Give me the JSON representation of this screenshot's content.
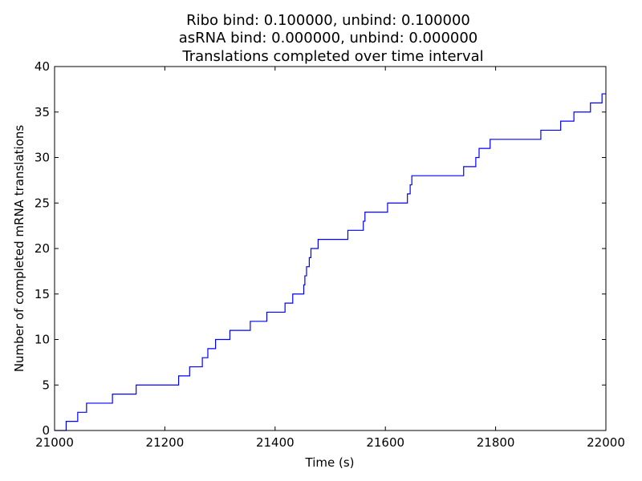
{
  "chart_data": {
    "type": "line",
    "step": true,
    "title_lines": [
      "Ribo bind: 0.100000, unbind: 0.100000",
      "asRNA bind: 0.000000, unbind: 0.000000",
      "Translations completed over time interval"
    ],
    "xlabel": "Time (s)",
    "ylabel": "Number of completed mRNA translations",
    "xlim": [
      21000,
      22000
    ],
    "ylim": [
      0,
      40
    ],
    "xticks": [
      21000,
      21200,
      21400,
      21600,
      21800,
      22000
    ],
    "yticks": [
      0,
      5,
      10,
      15,
      20,
      25,
      30,
      35,
      40
    ],
    "grid": false,
    "line_color": "#0000ff",
    "series": [
      {
        "x": [
          21000,
          21021,
          21042,
          21058,
          21105,
          21148,
          21225,
          21245,
          21268,
          21278,
          21292,
          21318,
          21355,
          21385,
          21418,
          21432,
          21452,
          21454,
          21457,
          21462,
          21465,
          21478,
          21532,
          21560,
          21563,
          21604,
          21640,
          21645,
          21648,
          21742,
          21764,
          21770,
          21790,
          21882,
          21918,
          21942,
          21972,
          21993,
          22000
        ],
        "y": [
          0,
          1,
          2,
          3,
          4,
          5,
          6,
          7,
          8,
          9,
          10,
          11,
          12,
          13,
          14,
          15,
          16,
          17,
          18,
          19,
          20,
          21,
          22,
          23,
          24,
          25,
          26,
          27,
          28,
          29,
          30,
          31,
          32,
          33,
          34,
          35,
          36,
          37,
          37
        ]
      }
    ]
  }
}
